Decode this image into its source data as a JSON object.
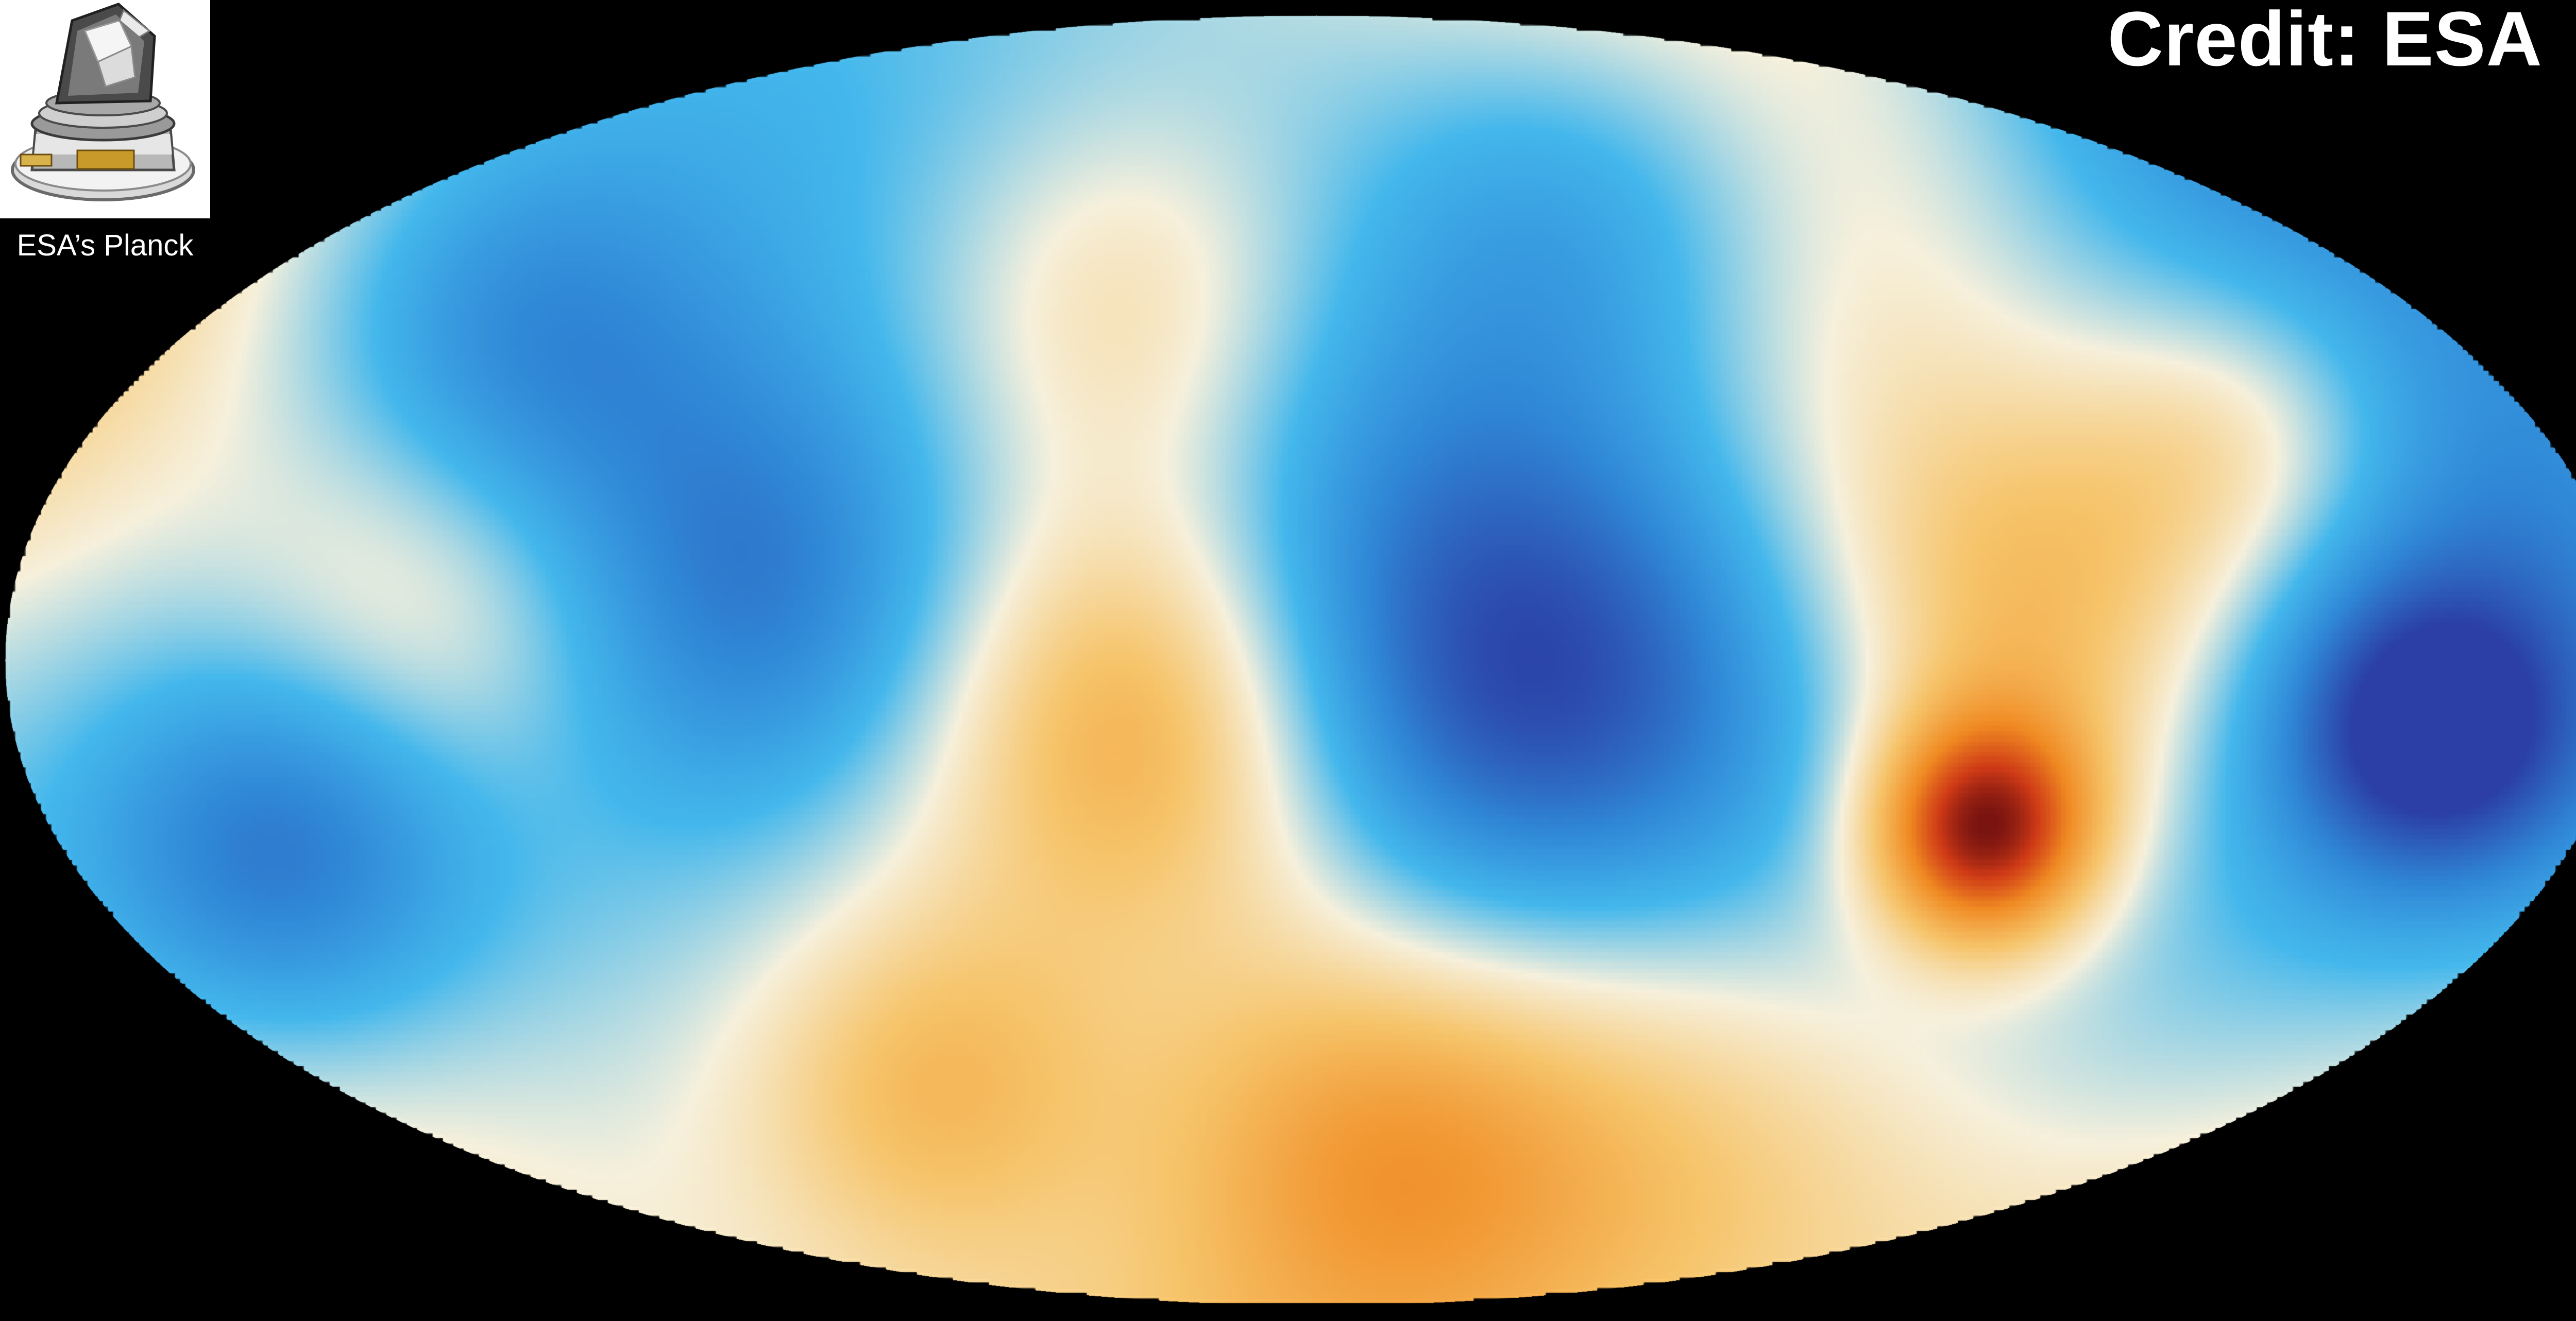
{
  "image": {
    "subject": "Planck all-sky map of the cosmic microwave background",
    "projection": "Mollweide",
    "background_color": "#000000",
    "palette": {
      "cold_deep": "#2b3fa6",
      "cold": "#2f86d6",
      "cool": "#43b7ec",
      "neutral": "#f6f0dc",
      "warm": "#f6c46a",
      "hot": "#f08a22",
      "hot_deep": "#cf3a16",
      "hottest": "#7a1410"
    }
  },
  "thumbnail": {
    "caption": "ESA’s Planck",
    "icon": "planck-satellite-icon"
  },
  "credit": {
    "text": "Credit: ESA"
  }
}
